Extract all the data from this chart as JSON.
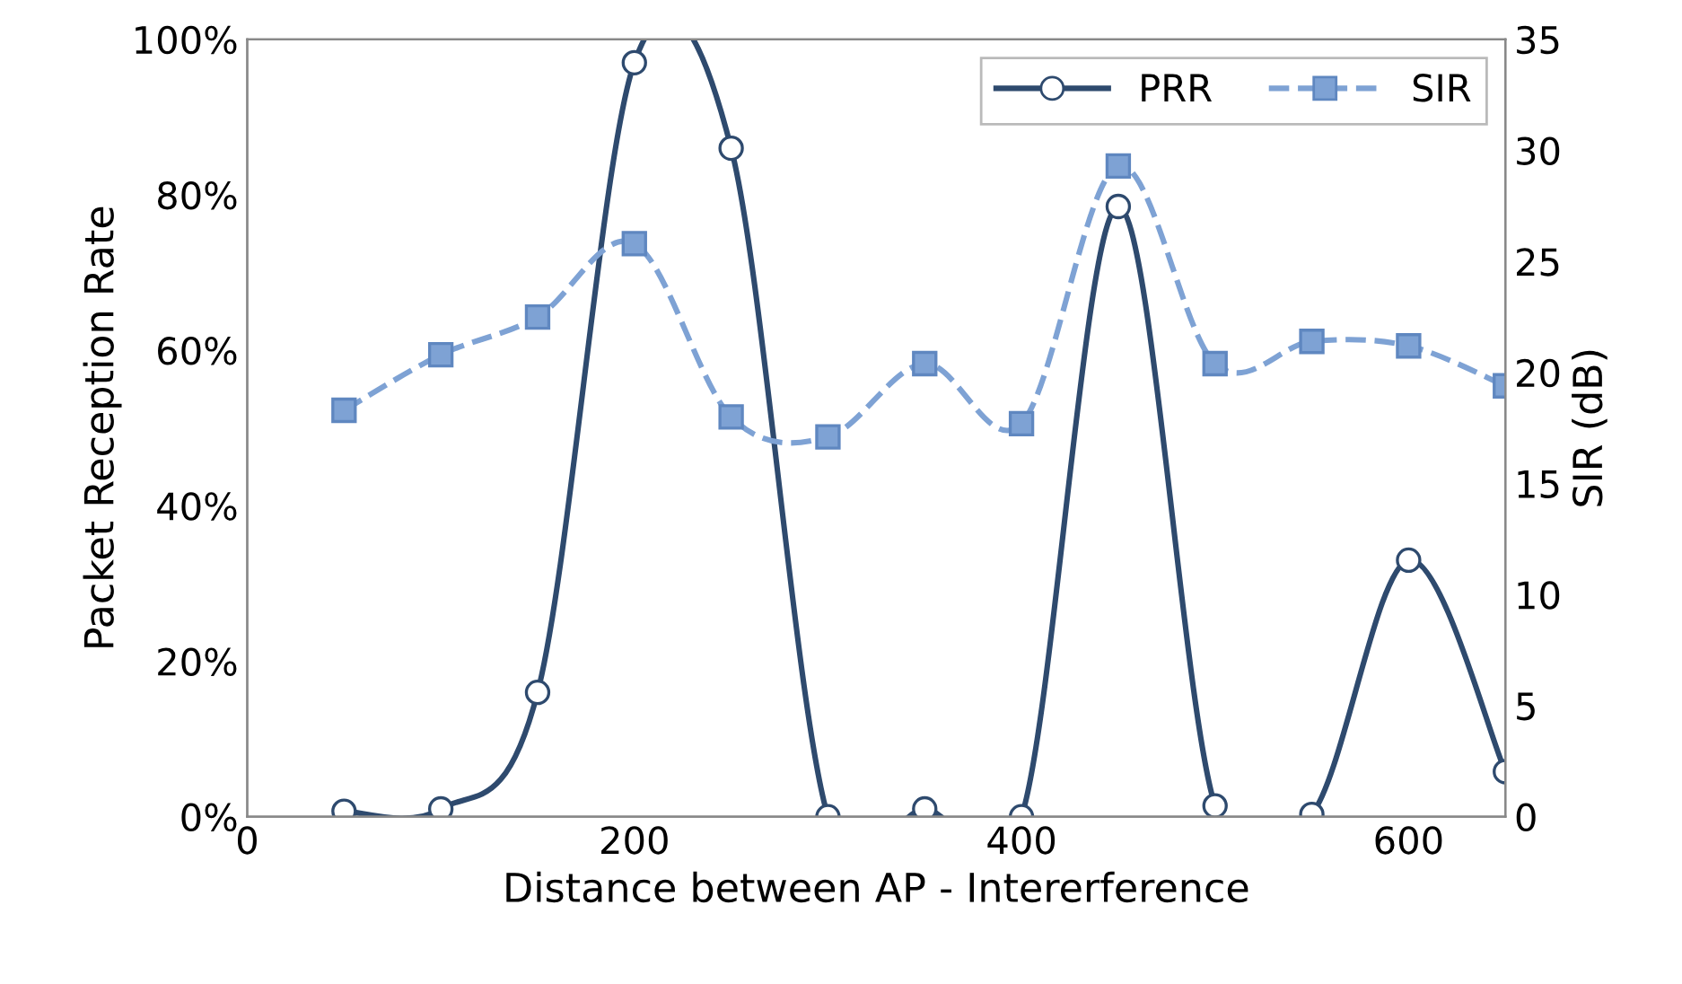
{
  "chart_data": {
    "type": "line",
    "xlabel": "Distance between AP - Intererference",
    "ylabel": "Packet Reception Rate",
    "y2label": "SIR (dB)",
    "x": [
      50,
      100,
      150,
      200,
      250,
      300,
      350,
      400,
      450,
      500,
      550,
      600,
      650
    ],
    "series": [
      {
        "name": "PRR",
        "color": "#2e4a6e",
        "marker": "circle",
        "line_style": "solid",
        "values": [
          0.7,
          1,
          16,
          97,
          86,
          0,
          1,
          0,
          78.5,
          1.4,
          0.3,
          33,
          5.8
        ]
      },
      {
        "name": "SIR",
        "color": "#7ea2d4",
        "marker": "square",
        "line_style": "dashed",
        "axis": "y2",
        "values": [
          18.3,
          20.8,
          22.5,
          25.8,
          18.0,
          17.1,
          20.4,
          17.7,
          29.3,
          20.4,
          21.4,
          21.2,
          19.4
        ]
      }
    ],
    "xlim": [
      0,
      650
    ],
    "xticks": [
      0,
      200,
      400,
      600
    ],
    "ylim": [
      0,
      100
    ],
    "yticks": [
      {
        "value": 0,
        "label": "0%"
      },
      {
        "value": 20,
        "label": "20%"
      },
      {
        "value": 40,
        "label": "40%"
      },
      {
        "value": 60,
        "label": "60%"
      },
      {
        "value": 80,
        "label": "80%"
      },
      {
        "value": 100,
        "label": "100%"
      }
    ],
    "y2lim": [
      0,
      35
    ],
    "y2ticks": [
      0,
      5,
      10,
      15,
      20,
      25,
      30,
      35
    ],
    "grid": false,
    "legend": "top right"
  }
}
